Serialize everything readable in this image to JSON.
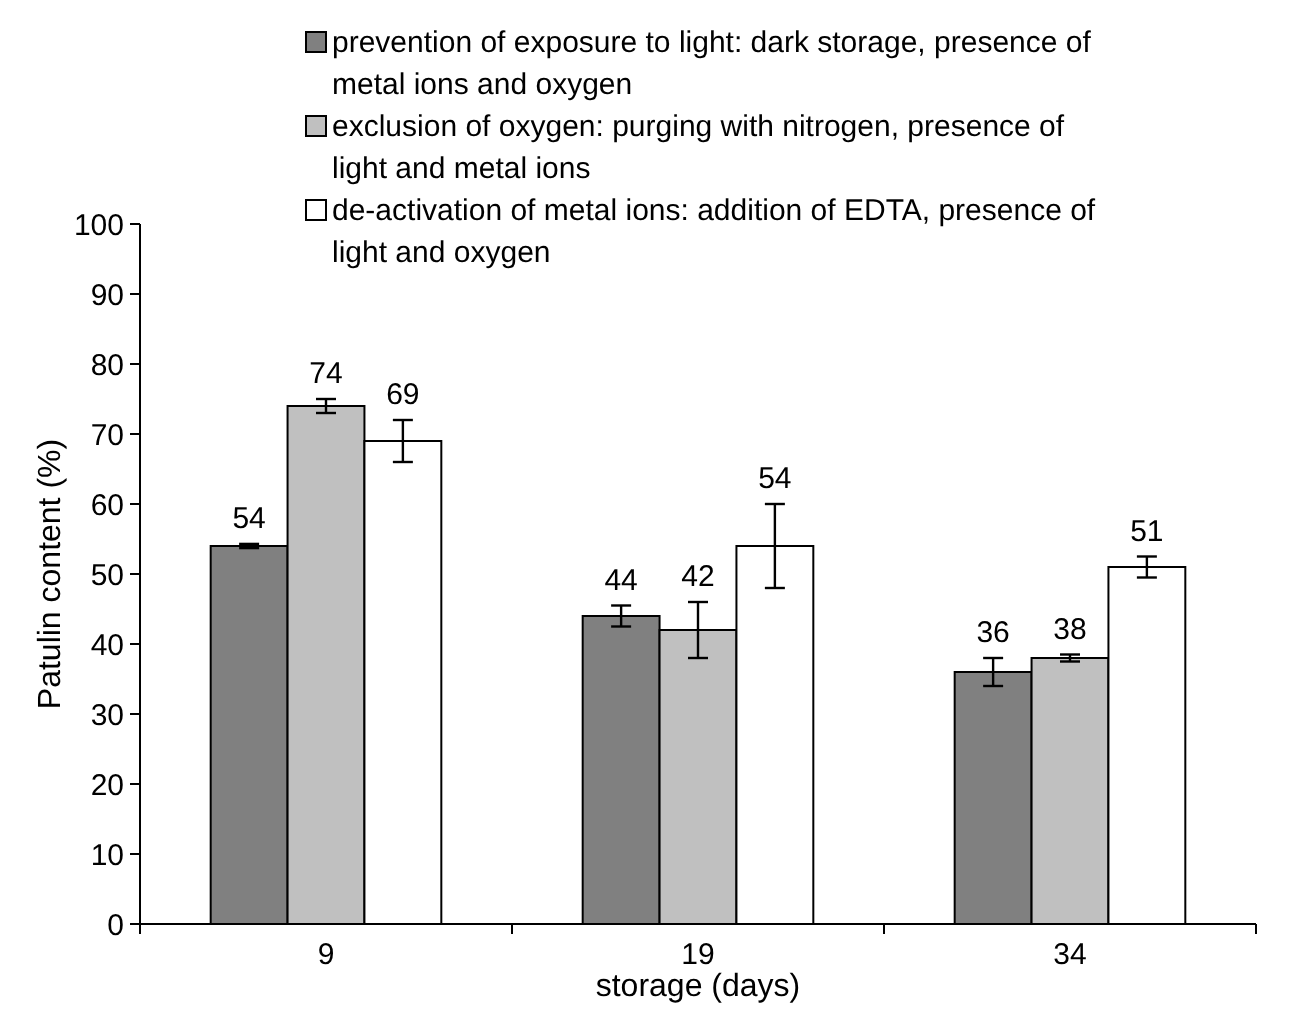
{
  "chart_data": {
    "type": "bar",
    "xlabel": "storage (days)",
    "ylabel": "Patulin content (%)",
    "categories": [
      "9",
      "19",
      "34"
    ],
    "series": [
      {
        "name": "prevention of exposure to light: dark storage, presence of metal ions and oxygen",
        "color": "#808080",
        "values": [
          54,
          44,
          36
        ],
        "errors": [
          0.3,
          1.5,
          2
        ]
      },
      {
        "name": "exclusion of oxygen: purging with nitrogen, presence of light and metal ions",
        "color": "#c0c0c0",
        "values": [
          74,
          42,
          38
        ],
        "errors": [
          1,
          4,
          0.5
        ]
      },
      {
        "name": "de-activation of metal ions: addition of EDTA, presence of light and oxygen",
        "color": "#ffffff",
        "values": [
          69,
          54,
          51
        ],
        "errors": [
          3,
          6,
          1.5
        ]
      }
    ],
    "ylim": [
      0,
      100
    ],
    "yticks": [
      0,
      10,
      20,
      30,
      40,
      50,
      60,
      70,
      80,
      90,
      100
    ],
    "grid": false,
    "legend": "top",
    "data_labels": true
  }
}
